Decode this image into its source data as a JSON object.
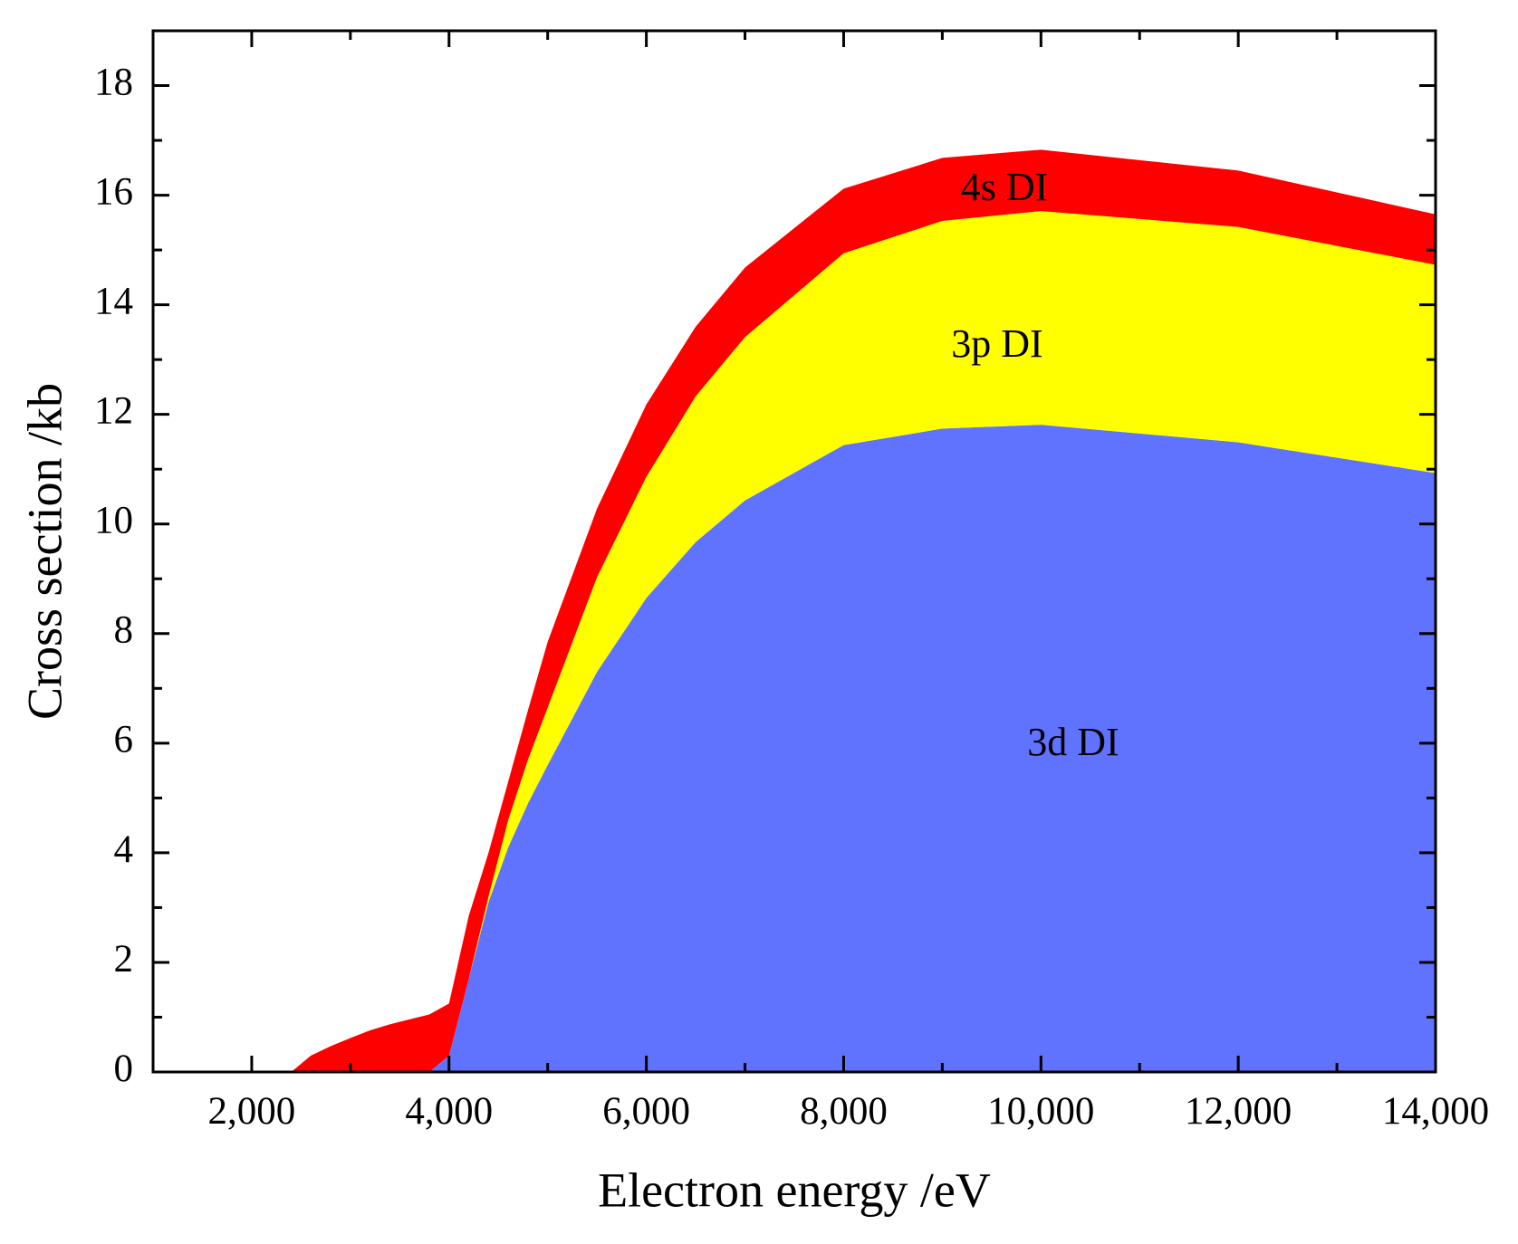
{
  "chart_data": {
    "type": "stacked_area",
    "xlabel": "Electron energy /eV",
    "ylabel": "Cross section /kb",
    "x": [
      1000,
      2400,
      2600,
      2800,
      3000,
      3200,
      3400,
      3600,
      3800,
      4000,
      4200,
      4400,
      4600,
      4800,
      5000,
      5500,
      6000,
      6500,
      7000,
      8000,
      9000,
      10000,
      12000,
      14000
    ],
    "series": [
      {
        "name": "3d DI",
        "color": "#5f73ff",
        "values": [
          0,
          0,
          0,
          0,
          0,
          0,
          0,
          0,
          0,
          0.3,
          1.7,
          3.1,
          4.1,
          4.9,
          5.6,
          7.3,
          8.65,
          9.67,
          10.43,
          11.44,
          11.74,
          11.81,
          11.49,
          10.93
        ]
      },
      {
        "name": "3p DI",
        "color": "#ffff00",
        "values": [
          0,
          0,
          0,
          0,
          0,
          0,
          0,
          0,
          0,
          0,
          0,
          0.1,
          0.5,
          0.8,
          1.05,
          1.73,
          2.21,
          2.66,
          2.98,
          3.5,
          3.79,
          3.9,
          3.93,
          3.8
        ]
      },
      {
        "name": "4s DI",
        "color": "#ff0000",
        "values": [
          0,
          0,
          0.3,
          0.47,
          0.62,
          0.76,
          0.87,
          0.96,
          1.05,
          0.95,
          1.15,
          0.8,
          0.7,
          0.9,
          1.2,
          1.25,
          1.32,
          1.27,
          1.27,
          1.18,
          1.15,
          1.12,
          1.03,
          0.92
        ]
      }
    ],
    "xlim": [
      1000,
      14000
    ],
    "xticks": [
      {
        "value": 2000,
        "label": "2,000"
      },
      {
        "value": 4000,
        "label": "4,000"
      },
      {
        "value": 6000,
        "label": "6,000"
      },
      {
        "value": 8000,
        "label": "8,000"
      },
      {
        "value": 10000,
        "label": "10,000"
      },
      {
        "value": 12000,
        "label": "12,000"
      },
      {
        "value": 14000,
        "label": "14,000"
      }
    ],
    "xminorticks": [
      1000,
      3000,
      5000,
      7000,
      9000,
      11000,
      13000
    ],
    "ylim": [
      0,
      19
    ],
    "yticks": [
      0,
      2,
      4,
      6,
      8,
      10,
      12,
      14,
      16,
      18
    ],
    "yminorticks": [
      1,
      3,
      5,
      7,
      9,
      11,
      13,
      15,
      17
    ],
    "grid": false
  }
}
